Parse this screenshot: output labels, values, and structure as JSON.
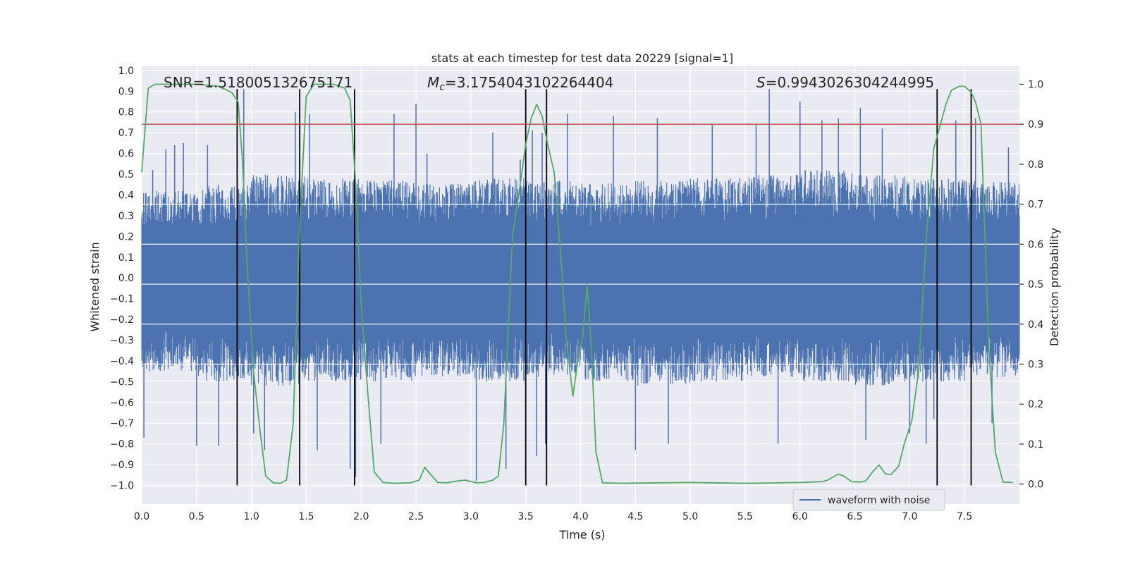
{
  "chart_data": {
    "type": "line",
    "title": "stats at each timestep for test data 20229 [signal=1]",
    "xlabel": "Time (s)",
    "ylabel": "Whitened strain",
    "y2label": "Detection probability",
    "xlim": [
      0.0,
      8.0
    ],
    "ylim": [
      -1.09,
      1.02
    ],
    "y2lim": [
      -0.05,
      1.045
    ],
    "xticks": [
      0.0,
      0.5,
      1.0,
      1.5,
      2.0,
      2.5,
      3.0,
      3.5,
      4.0,
      4.5,
      5.0,
      5.5,
      6.0,
      6.5,
      7.0,
      7.5
    ],
    "yticks": [
      1.0,
      0.9,
      0.8,
      0.7,
      0.6,
      0.5,
      0.4,
      0.3,
      0.2,
      0.1,
      0.0,
      -0.1,
      -0.2,
      -0.3,
      -0.4,
      -0.5,
      -0.6,
      -0.7,
      -0.8,
      -0.9,
      -1.0
    ],
    "y2ticks": [
      1.0,
      0.9,
      0.8,
      0.7,
      0.6,
      0.5,
      0.4,
      0.3,
      0.2,
      0.1,
      0.0
    ],
    "grid": true,
    "legend": {
      "placement": "lower-right",
      "entries": [
        "waveform with noise"
      ]
    },
    "annotations": {
      "snr": "SNR=1.518005132675171",
      "mc_symbol": "M",
      "mc_sub": "c",
      "mc_value": "=3.1754043102264404",
      "s_symbol": "S",
      "s_value": "=0.9943026304244995"
    },
    "waveform": {
      "name": "waveform with noise",
      "color": "#4c72b0",
      "x_range": [
        0.0,
        8.0
      ],
      "band_min": [
        -0.45,
        -0.5,
        -0.52,
        -0.5,
        -0.5,
        -0.48,
        -0.5,
        -0.48,
        -0.5,
        -0.52,
        -0.5,
        -0.48,
        -0.5,
        -0.52,
        -0.5,
        -0.48
      ],
      "band_max": [
        0.42,
        0.45,
        0.5,
        0.48,
        0.47,
        0.46,
        0.48,
        0.47,
        0.46,
        0.47,
        0.48,
        0.5,
        0.52,
        0.5,
        0.48,
        0.47
      ],
      "spikes": [
        [
          0.02,
          -0.77
        ],
        [
          0.1,
          0.52
        ],
        [
          0.22,
          0.62
        ],
        [
          0.3,
          0.64
        ],
        [
          0.38,
          0.65
        ],
        [
          0.5,
          -0.81
        ],
        [
          0.6,
          0.64
        ],
        [
          0.7,
          -0.81
        ],
        [
          0.93,
          0.91
        ],
        [
          1.02,
          -0.75
        ],
        [
          1.12,
          -0.83
        ],
        [
          1.4,
          0.8
        ],
        [
          1.53,
          0.79
        ],
        [
          1.6,
          -0.83
        ],
        [
          1.9,
          -0.92
        ],
        [
          1.95,
          -0.96
        ],
        [
          2.18,
          -0.8
        ],
        [
          2.3,
          0.79
        ],
        [
          2.5,
          0.84
        ],
        [
          2.6,
          0.6
        ],
        [
          3.05,
          -0.98
        ],
        [
          3.2,
          0.7
        ],
        [
          3.32,
          -0.92
        ],
        [
          3.45,
          0.57
        ],
        [
          3.56,
          0.71
        ],
        [
          3.6,
          -0.86
        ],
        [
          3.65,
          0.7
        ],
        [
          3.68,
          -0.8
        ],
        [
          3.88,
          0.79
        ],
        [
          4.3,
          0.78
        ],
        [
          4.5,
          -0.83
        ],
        [
          4.7,
          0.77
        ],
        [
          4.8,
          -0.8
        ],
        [
          5.2,
          0.74
        ],
        [
          5.6,
          0.74
        ],
        [
          5.72,
          0.91
        ],
        [
          5.8,
          -0.8
        ],
        [
          6.0,
          0.85
        ],
        [
          6.2,
          0.76
        ],
        [
          6.35,
          0.77
        ],
        [
          6.55,
          0.82
        ],
        [
          6.6,
          -0.78
        ],
        [
          6.75,
          0.72
        ],
        [
          7.0,
          -0.75
        ],
        [
          7.15,
          -0.8
        ],
        [
          7.22,
          -0.68
        ],
        [
          7.42,
          0.76
        ],
        [
          7.6,
          0.77
        ],
        [
          7.75,
          -0.7
        ],
        [
          7.9,
          0.63
        ]
      ]
    },
    "detection_probability": {
      "color": "#55a868",
      "x": [
        0.0,
        0.06,
        0.12,
        0.25,
        0.5,
        0.7,
        0.82,
        0.88,
        0.92,
        0.96,
        1.02,
        1.08,
        1.13,
        1.2,
        1.26,
        1.32,
        1.38,
        1.44,
        1.5,
        1.57,
        1.65,
        1.75,
        1.85,
        1.9,
        1.95,
        2.0,
        2.06,
        2.12,
        2.2,
        2.3,
        2.45,
        2.53,
        2.58,
        2.63,
        2.7,
        2.78,
        2.88,
        2.95,
        3.05,
        3.12,
        3.2,
        3.25,
        3.3,
        3.38,
        3.45,
        3.5,
        3.55,
        3.6,
        3.65,
        3.7,
        3.76,
        3.82,
        3.87,
        3.93,
        3.98,
        4.02,
        4.06,
        4.1,
        4.14,
        4.2,
        4.4,
        5.0,
        5.5,
        5.8,
        6.0,
        6.2,
        6.25,
        6.35,
        6.4,
        6.47,
        6.55,
        6.6,
        6.66,
        6.72,
        6.78,
        6.83,
        6.9,
        6.95,
        7.02,
        7.08,
        7.15,
        7.22,
        7.28,
        7.33,
        7.38,
        7.45,
        7.5,
        7.56,
        7.6,
        7.65,
        7.72,
        7.78,
        7.85,
        7.94
      ],
      "y": [
        0.78,
        0.99,
        1.0,
        1.0,
        1.0,
        0.995,
        0.98,
        0.955,
        0.8,
        0.55,
        0.28,
        0.13,
        0.02,
        0.003,
        0.002,
        0.01,
        0.15,
        0.65,
        0.97,
        1.0,
        1.0,
        1.0,
        0.99,
        0.96,
        0.75,
        0.45,
        0.23,
        0.03,
        0.004,
        0.002,
        0.003,
        0.01,
        0.042,
        0.025,
        0.004,
        0.003,
        0.008,
        0.01,
        0.003,
        0.004,
        0.01,
        0.02,
        0.15,
        0.62,
        0.75,
        0.85,
        0.915,
        0.95,
        0.92,
        0.85,
        0.78,
        0.57,
        0.36,
        0.22,
        0.32,
        0.37,
        0.5,
        0.33,
        0.08,
        0.003,
        0.002,
        0.004,
        0.002,
        0.003,
        0.004,
        0.006,
        0.01,
        0.025,
        0.02,
        0.006,
        0.005,
        0.008,
        0.03,
        0.048,
        0.025,
        0.024,
        0.045,
        0.1,
        0.16,
        0.28,
        0.61,
        0.84,
        0.9,
        0.95,
        0.985,
        0.995,
        0.995,
        0.98,
        0.955,
        0.9,
        0.35,
        0.08,
        0.005,
        0.004
      ]
    },
    "threshold": {
      "color": "#c44e52",
      "y2": 0.9
    },
    "event_lines": {
      "color": "#000000",
      "x": [
        0.87,
        1.44,
        1.94,
        3.5,
        3.69,
        7.25,
        7.56
      ],
      "y_range": [
        -1.0,
        0.91
      ]
    }
  }
}
